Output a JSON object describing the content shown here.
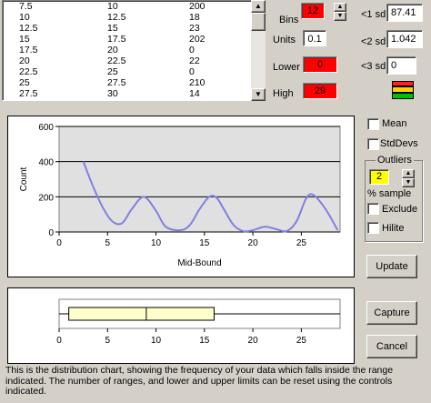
{
  "data_rows": [
    [
      "7.5",
      "10",
      "200"
    ],
    [
      "10",
      "12.5",
      "18"
    ],
    [
      "12.5",
      "15",
      "23"
    ],
    [
      "15",
      "17.5",
      "202"
    ],
    [
      "17.5",
      "20",
      "0"
    ],
    [
      "20",
      "22.5",
      "22"
    ],
    [
      "22.5",
      "25",
      "0"
    ],
    [
      "25",
      "27.5",
      "210"
    ],
    [
      "27.5",
      "30",
      "14"
    ]
  ],
  "controls": {
    "bins_label": "Bins",
    "bins_value": "12",
    "units_label": "Units",
    "units_value": "0.1",
    "lower_label": "Lower",
    "lower_value": "0",
    "high_label": "High",
    "high_value": "29",
    "sd1_label": "<1 sd",
    "sd1_value": "87.41",
    "sd2_label": "<2 sd",
    "sd2_value": "1.042",
    "sd3_label": "<3 sd",
    "sd3_value": "0"
  },
  "options": {
    "mean_label": "Mean",
    "stddevs_label": "StdDevs",
    "outliers_label": "Outliers",
    "outliers_value": "2",
    "pct_sample_label": "% sample",
    "exclude_label": "Exclude",
    "hilite_label": "Hilite"
  },
  "buttons": {
    "update": "Update",
    "capture": "Capture",
    "cancel": "Cancel"
  },
  "colors": {
    "red_field": "#ff0000",
    "yellow_field": "#ffff00",
    "curve": "#8080e0",
    "plot_bg": "#e0e0e0",
    "box_fill": "#ffffcc"
  },
  "chart_data": {
    "type": "line",
    "xlabel": "Mid-Bound",
    "ylabel": "Count",
    "xlim": [
      0,
      29
    ],
    "ylim": [
      0,
      600
    ],
    "x_ticks": [
      "0",
      "5",
      "10",
      "15",
      "20",
      "25"
    ],
    "y_ticks": [
      "0",
      "200",
      "400",
      "600"
    ],
    "x": [
      2.5,
      3.5,
      4.5,
      5.5,
      6.5,
      7.5,
      8.75,
      10,
      11,
      12.5,
      13.5,
      14.5,
      15.5,
      16.25,
      17,
      18,
      19,
      20,
      21.25,
      22.5,
      23.5,
      24.5,
      25.5,
      26.25,
      27.5,
      28.75
    ],
    "y": [
      400,
      260,
      140,
      60,
      50,
      130,
      200,
      120,
      30,
      10,
      40,
      130,
      200,
      195,
      130,
      40,
      5,
      10,
      30,
      15,
      5,
      60,
      190,
      210,
      130,
      10
    ],
    "grid": "horizontal"
  },
  "boxplot": {
    "x_ticks": [
      "0",
      "5",
      "10",
      "15",
      "20",
      "25"
    ],
    "xlim": [
      0,
      29
    ],
    "min": 0,
    "q1": 1,
    "median": 9,
    "q3": 16,
    "max": 29
  },
  "description": "This is the distribution chart, showing the frequency of your data which falls inside the range indicated. The number of ranges, and lower and upper limits can be reset using the controls indicated."
}
